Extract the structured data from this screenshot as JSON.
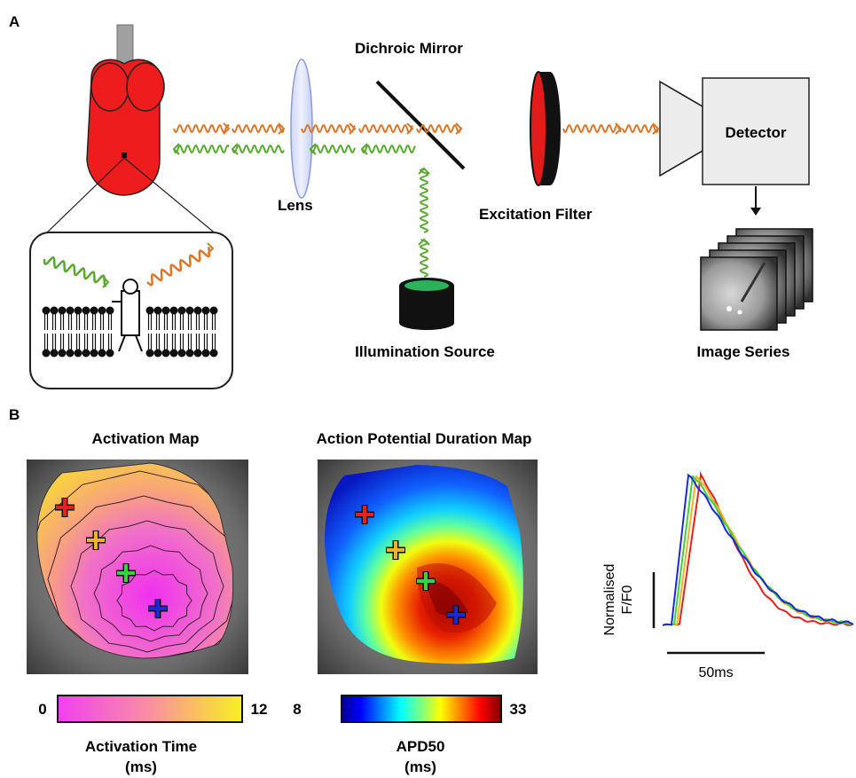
{
  "panel_a": {
    "label": "A",
    "dichroic_mirror": "Dichroic Mirror",
    "lens": "Lens",
    "excitation_filter": "Excitation Filter",
    "detector": "Detector",
    "illumination_source": "Illumination Source",
    "image_series": "Image Series"
  },
  "panel_b": {
    "label": "B",
    "activation_map": {
      "title": "Activation Map",
      "scale_min": "0",
      "scale_max": "12",
      "scale_label": "Activation Time",
      "scale_unit": "(ms)"
    },
    "apd_map": {
      "title": "Action Potential Duration Map",
      "scale_min": "8",
      "scale_max": "33",
      "scale_label": "APD50",
      "scale_unit": "(ms)"
    },
    "traces": {
      "ylabel_line1": "Normalised",
      "ylabel_line2": "F/F0",
      "time_scale": "50ms"
    }
  },
  "colors": {
    "heart": "#ee1c1c",
    "emission_wave": "#d9772c",
    "excitation_wave": "#5aa832",
    "filter": "#e31b1b",
    "marker_red": "#e8211c",
    "marker_orange": "#f2b12a",
    "marker_green": "#3bd23b",
    "marker_blue": "#1c28d8"
  }
}
